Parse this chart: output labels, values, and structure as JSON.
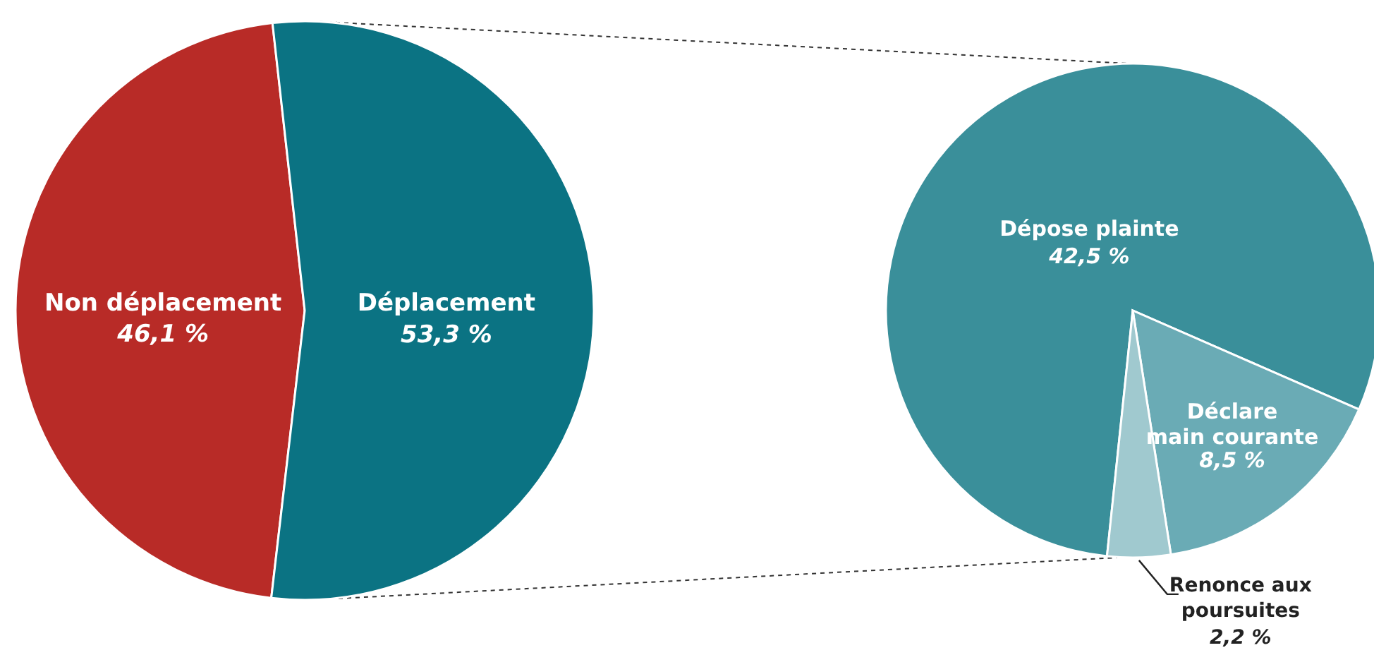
{
  "chart_data": [
    {
      "type": "pie",
      "categories": [
        "Non déplacement",
        "Déplacement"
      ],
      "values": [
        46.1,
        53.3
      ],
      "colors": [
        "#b82b27",
        "#0b7383"
      ],
      "value_labels": [
        "46,1 %",
        "53,3 %"
      ]
    },
    {
      "type": "pie",
      "categories": [
        "Dépose plainte",
        "Déclare main courante",
        "Renonce aux poursuites"
      ],
      "values": [
        42.5,
        8.5,
        2.2
      ],
      "colors": [
        "#3a8f9a",
        "#6aabb5",
        "#a0c9cf"
      ],
      "value_labels": [
        "42,5 %",
        "8,5 %",
        "2,2 %"
      ]
    }
  ]
}
